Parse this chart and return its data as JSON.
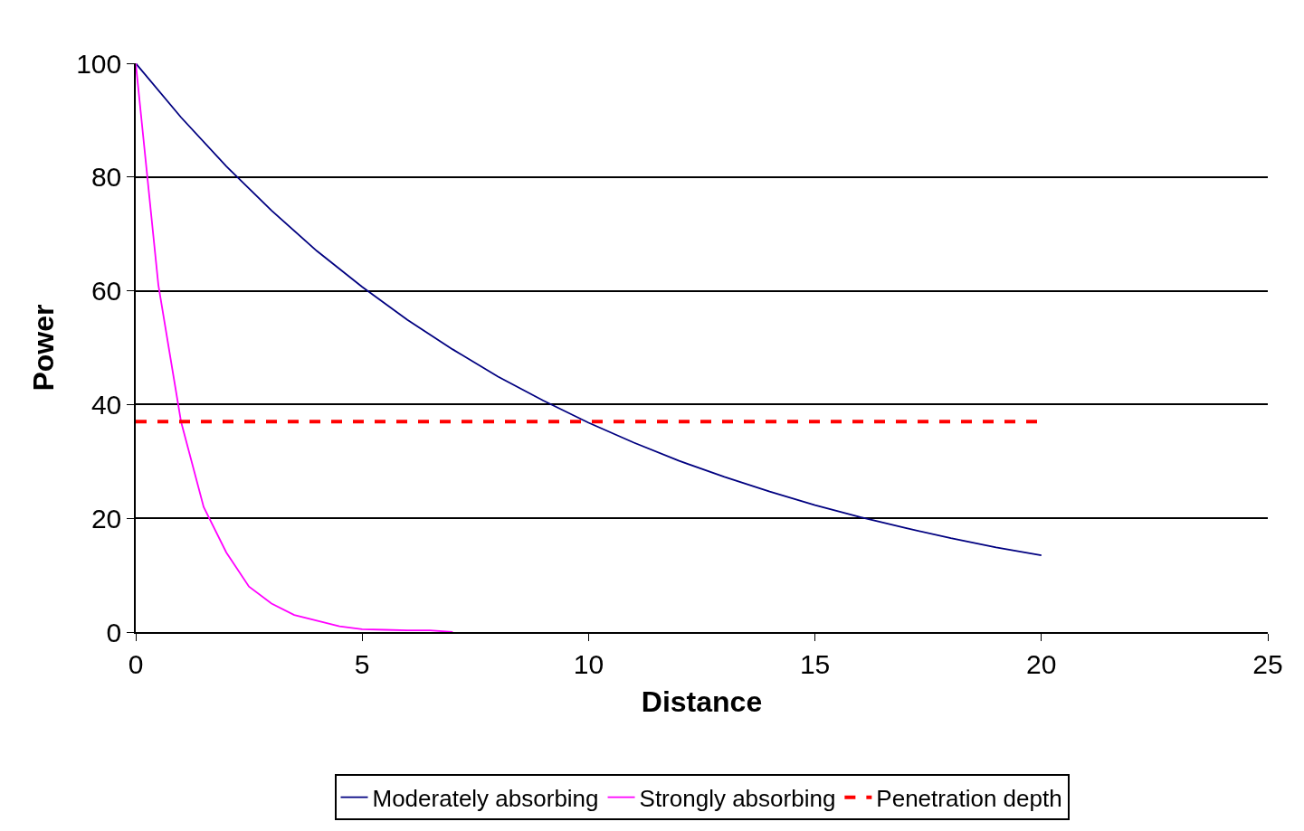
{
  "chart_data": {
    "type": "line",
    "xlabel": "Distance",
    "ylabel": "Power",
    "xlim": [
      0,
      25
    ],
    "ylim": [
      0,
      100
    ],
    "xticks": [
      0,
      5,
      10,
      15,
      20,
      25
    ],
    "yticks": [
      0,
      20,
      40,
      60,
      80,
      100
    ],
    "grid": "y",
    "legend": "bottom",
    "marker": "none",
    "series": [
      {
        "name": "Moderately absorbing",
        "color": "#000080",
        "line_style": "solid",
        "x": [
          0,
          1,
          2,
          3,
          4,
          5,
          6,
          7,
          8,
          9,
          10,
          11,
          12,
          13,
          14,
          15,
          16,
          17,
          18,
          19,
          20
        ],
        "values": [
          100,
          90.5,
          81.9,
          74.1,
          67,
          60.7,
          54.9,
          49.7,
          44.9,
          40.7,
          36.8,
          33.3,
          30.1,
          27.3,
          24.7,
          22.3,
          20.2,
          18.3,
          16.5,
          14.9,
          13.5
        ]
      },
      {
        "name": "Strongly absorbing",
        "color": "#ff00ff",
        "line_style": "solid",
        "x": [
          0,
          0.5,
          1,
          1.5,
          2,
          2.5,
          3,
          3.5,
          4,
          4.5,
          5,
          5.5,
          6,
          6.5,
          7
        ],
        "values": [
          100,
          61,
          37,
          22,
          14,
          8,
          5,
          3,
          2,
          1,
          0.5,
          0.4,
          0.3,
          0.3,
          0
        ]
      },
      {
        "name": "Penetration depth",
        "color": "#ff0000",
        "line_style": "dashed",
        "x": [
          0,
          20
        ],
        "values": [
          37,
          37
        ]
      }
    ]
  }
}
